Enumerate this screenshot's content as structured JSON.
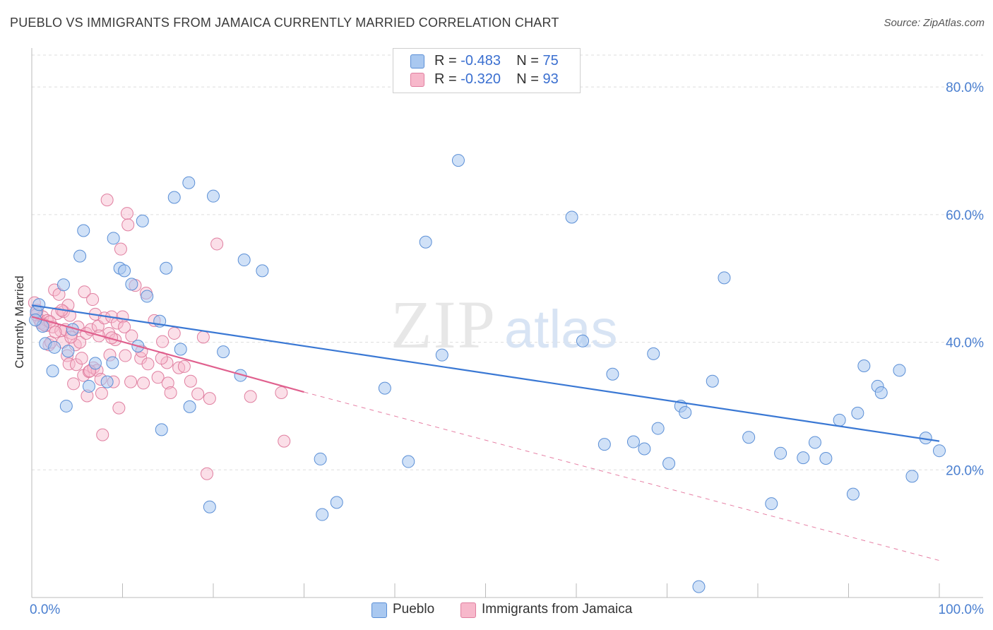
{
  "title": "PUEBLO VS IMMIGRANTS FROM JAMAICA CURRENTLY MARRIED CORRELATION CHART",
  "source": "Source: ZipAtlas.com",
  "watermark": {
    "zip": "ZIP",
    "atlas": "atlas"
  },
  "legend": {
    "r_label": "R =",
    "n_label": "N =",
    "items": [
      {
        "name": "Pueblo",
        "r": "-0.483",
        "n": "75",
        "fill": "#a9c8f0",
        "stroke": "#5b8fd6"
      },
      {
        "name": "Immigrants from Jamaica",
        "r": "-0.320",
        "n": "93",
        "fill": "#f7b8cb",
        "stroke": "#e07fa0"
      }
    ]
  },
  "colors": {
    "blue_line": "#3a78d4",
    "pink_line": "#e0608e",
    "grid": "#dddddd",
    "tick_text": "#4a7fd0"
  },
  "chart_data": {
    "type": "scatter",
    "title": "PUEBLO VS IMMIGRANTS FROM JAMAICA CURRENTLY MARRIED CORRELATION CHART",
    "xlabel": "",
    "ylabel": "Currently Married",
    "xlim": [
      0,
      100
    ],
    "ylim": [
      0,
      85
    ],
    "x_tick_labels": [
      "0.0%",
      "100.0%"
    ],
    "y_ticks": [
      20,
      40,
      60,
      80
    ],
    "y_tick_labels": [
      "20.0%",
      "40.0%",
      "60.0%",
      "80.0%"
    ],
    "grid": true,
    "legend_position": "top-center",
    "series": [
      {
        "name": "Pueblo",
        "color": "#5b8fd6",
        "trend": {
          "x": [
            0,
            100
          ],
          "y": [
            45.8,
            24.5
          ],
          "style": "solid"
        },
        "points": [
          [
            0.5,
            44.8
          ],
          [
            0.8,
            45.9
          ],
          [
            1.2,
            42.5
          ],
          [
            1.5,
            39.8
          ],
          [
            2.5,
            39.2
          ],
          [
            3.5,
            49.0
          ],
          [
            4.0,
            38.6
          ],
          [
            4.5,
            42.0
          ],
          [
            2.3,
            35.5
          ],
          [
            3.8,
            30.0
          ],
          [
            5.3,
            53.5
          ],
          [
            5.7,
            57.5
          ],
          [
            6.3,
            33.1
          ],
          [
            7.0,
            36.7
          ],
          [
            8.3,
            33.8
          ],
          [
            8.9,
            36.8
          ],
          [
            9.0,
            56.3
          ],
          [
            9.7,
            51.6
          ],
          [
            10.2,
            51.2
          ],
          [
            11.0,
            49.1
          ],
          [
            11.7,
            39.4
          ],
          [
            12.2,
            59.0
          ],
          [
            12.7,
            47.2
          ],
          [
            14.1,
            43.3
          ],
          [
            14.3,
            26.3
          ],
          [
            14.8,
            51.6
          ],
          [
            15.7,
            62.7
          ],
          [
            16.4,
            38.9
          ],
          [
            17.3,
            65.0
          ],
          [
            17.4,
            29.9
          ],
          [
            19.6,
            14.2
          ],
          [
            20.0,
            62.9
          ],
          [
            21.1,
            38.5
          ],
          [
            23.0,
            34.8
          ],
          [
            23.4,
            52.9
          ],
          [
            25.4,
            51.2
          ],
          [
            31.8,
            21.7
          ],
          [
            32.0,
            13.0
          ],
          [
            33.6,
            14.9
          ],
          [
            38.9,
            32.8
          ],
          [
            41.5,
            21.3
          ],
          [
            43.4,
            55.7
          ],
          [
            45.2,
            38.0
          ],
          [
            47.0,
            68.5
          ],
          [
            59.5,
            59.6
          ],
          [
            60.7,
            40.2
          ],
          [
            63.1,
            24.0
          ],
          [
            64.0,
            35.0
          ],
          [
            66.3,
            24.4
          ],
          [
            67.5,
            23.3
          ],
          [
            68.5,
            38.2
          ],
          [
            69.0,
            26.5
          ],
          [
            70.2,
            21.0
          ],
          [
            71.5,
            30.0
          ],
          [
            72.0,
            29.0
          ],
          [
            73.5,
            1.7
          ],
          [
            75.0,
            33.9
          ],
          [
            76.3,
            50.1
          ],
          [
            79.0,
            25.1
          ],
          [
            81.5,
            14.7
          ],
          [
            82.5,
            22.6
          ],
          [
            85.0,
            21.9
          ],
          [
            86.3,
            24.3
          ],
          [
            87.5,
            21.8
          ],
          [
            89.0,
            27.8
          ],
          [
            90.5,
            16.2
          ],
          [
            91.0,
            28.9
          ],
          [
            91.7,
            36.3
          ],
          [
            93.2,
            33.1
          ],
          [
            93.6,
            32.1
          ],
          [
            95.6,
            35.6
          ],
          [
            97.0,
            19.0
          ],
          [
            98.5,
            25.0
          ],
          [
            100.0,
            23.0
          ],
          [
            0.4,
            43.5
          ]
        ]
      },
      {
        "name": "Immigrants from Jamaica",
        "color": "#e07fa0",
        "trend": {
          "x": [
            0,
            30
          ],
          "y": [
            44.0,
            32.2
          ],
          "style": "solid",
          "extended": {
            "x": [
              30,
              100
            ],
            "y": [
              32.2,
              5.8
            ],
            "style": "dashed"
          }
        },
        "points": [
          [
            0.3,
            46.2
          ],
          [
            0.6,
            45.0
          ],
          [
            0.8,
            43.6
          ],
          [
            1.0,
            43.0
          ],
          [
            1.2,
            44.0
          ],
          [
            1.5,
            42.6
          ],
          [
            1.7,
            43.4
          ],
          [
            1.9,
            39.6
          ],
          [
            2.1,
            40.0
          ],
          [
            2.3,
            42.4
          ],
          [
            2.5,
            48.2
          ],
          [
            2.8,
            44.5
          ],
          [
            3.0,
            47.5
          ],
          [
            3.2,
            41.8
          ],
          [
            3.4,
            40.0
          ],
          [
            3.5,
            44.8
          ],
          [
            3.7,
            42.0
          ],
          [
            3.9,
            37.9
          ],
          [
            4.0,
            45.8
          ],
          [
            4.1,
            36.6
          ],
          [
            4.2,
            44.2
          ],
          [
            4.4,
            41.4
          ],
          [
            4.6,
            33.5
          ],
          [
            4.8,
            39.6
          ],
          [
            4.9,
            36.5
          ],
          [
            5.1,
            42.4
          ],
          [
            5.3,
            40.0
          ],
          [
            5.5,
            37.5
          ],
          [
            5.7,
            34.8
          ],
          [
            5.8,
            47.9
          ],
          [
            6.0,
            41.4
          ],
          [
            6.1,
            31.6
          ],
          [
            6.3,
            35.4
          ],
          [
            6.5,
            42.0
          ],
          [
            6.7,
            46.7
          ],
          [
            6.8,
            36.0
          ],
          [
            7.0,
            44.4
          ],
          [
            7.2,
            35.6
          ],
          [
            7.3,
            42.5
          ],
          [
            7.6,
            34.2
          ],
          [
            7.7,
            32.0
          ],
          [
            7.8,
            25.5
          ],
          [
            8.0,
            43.8
          ],
          [
            8.3,
            62.3
          ],
          [
            8.5,
            41.4
          ],
          [
            8.6,
            38.0
          ],
          [
            8.8,
            44.0
          ],
          [
            9.0,
            33.8
          ],
          [
            9.2,
            40.4
          ],
          [
            9.4,
            43.0
          ],
          [
            9.6,
            29.7
          ],
          [
            9.8,
            54.6
          ],
          [
            10.0,
            44.0
          ],
          [
            10.3,
            37.9
          ],
          [
            10.5,
            60.2
          ],
          [
            10.6,
            58.4
          ],
          [
            10.9,
            33.8
          ],
          [
            11.0,
            41.0
          ],
          [
            11.4,
            48.9
          ],
          [
            12.0,
            37.5
          ],
          [
            12.3,
            33.6
          ],
          [
            12.6,
            47.7
          ],
          [
            12.8,
            36.6
          ],
          [
            13.5,
            43.4
          ],
          [
            13.9,
            34.5
          ],
          [
            14.4,
            40.1
          ],
          [
            14.9,
            36.8
          ],
          [
            15.0,
            33.6
          ],
          [
            15.3,
            32.1
          ],
          [
            15.7,
            41.4
          ],
          [
            16.2,
            36.0
          ],
          [
            16.8,
            36.2
          ],
          [
            17.5,
            33.9
          ],
          [
            18.3,
            31.9
          ],
          [
            18.9,
            40.8
          ],
          [
            19.3,
            19.4
          ],
          [
            19.6,
            31.2
          ],
          [
            20.4,
            55.4
          ],
          [
            24.1,
            31.5
          ],
          [
            27.5,
            32.1
          ],
          [
            27.8,
            24.5
          ],
          [
            0.5,
            44.3
          ],
          [
            1.3,
            42.8
          ],
          [
            2.0,
            43.2
          ],
          [
            2.6,
            41.6
          ],
          [
            3.3,
            45.0
          ],
          [
            4.3,
            40.8
          ],
          [
            6.4,
            35.5
          ],
          [
            7.4,
            41.0
          ],
          [
            8.8,
            40.7
          ],
          [
            10.2,
            42.4
          ],
          [
            12.1,
            38.6
          ],
          [
            14.3,
            37.5
          ]
        ]
      }
    ]
  }
}
